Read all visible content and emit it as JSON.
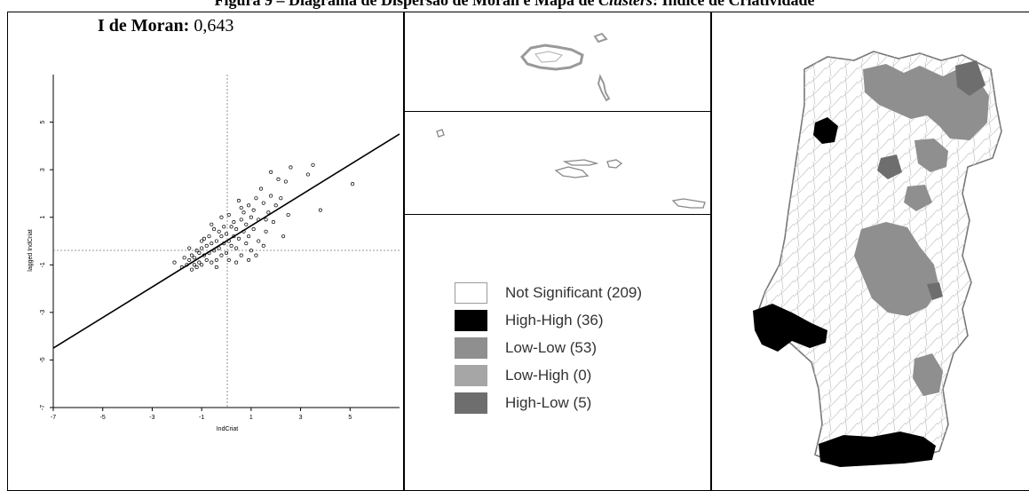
{
  "figure_title_prefix": "Figura 9 – Diagrama de Dispersão de Moran e Mapa de ",
  "figure_title_italic": "Clusters",
  "figure_title_suffix": ": Índice de Criatividade",
  "moran_label": "I de Moran:",
  "moran_value": "0,643",
  "legend": [
    {
      "label": "Not Significant (209)",
      "color": "#ffffff"
    },
    {
      "label": "High-High (36)",
      "color": "#000000"
    },
    {
      "label": "Low-Low (53)",
      "color": "#8f8f8f"
    },
    {
      "label": "Low-High (0)",
      "color": "#a6a6a6"
    },
    {
      "label": "High-Low (5)",
      "color": "#6e6e6e"
    }
  ],
  "chart_data": {
    "type": "scatter",
    "xlabel": "IndCriat",
    "ylabel": "lagged IndCriat",
    "xlim": [
      -7,
      7
    ],
    "ylim": [
      -7,
      7
    ],
    "xticks": [
      -7,
      -5,
      -3,
      -1,
      1,
      3,
      5
    ],
    "yticks": [
      -7,
      -5,
      -3,
      -1,
      1,
      3,
      5
    ],
    "regression": {
      "slope": 0.643,
      "intercept": 0
    },
    "points": [
      [
        5.1,
        2.4
      ],
      [
        3.8,
        1.3
      ],
      [
        3.5,
        3.2
      ],
      [
        3.3,
        2.8
      ],
      [
        2.6,
        3.1
      ],
      [
        2.4,
        2.5
      ],
      [
        2.5,
        1.1
      ],
      [
        2.3,
        0.2
      ],
      [
        2.1,
        2.6
      ],
      [
        2.0,
        1.5
      ],
      [
        1.9,
        0.8
      ],
      [
        1.8,
        2.9
      ],
      [
        1.8,
        1.9
      ],
      [
        1.7,
        1.2
      ],
      [
        1.6,
        0.4
      ],
      [
        1.5,
        -0.2
      ],
      [
        1.5,
        1.6
      ],
      [
        1.4,
        2.2
      ],
      [
        1.3,
        0.9
      ],
      [
        1.3,
        0.0
      ],
      [
        1.2,
        1.8
      ],
      [
        1.1,
        1.3
      ],
      [
        1.1,
        0.5
      ],
      [
        1.0,
        -0.4
      ],
      [
        1.0,
        1.0
      ],
      [
        0.9,
        0.2
      ],
      [
        0.9,
        1.5
      ],
      [
        0.8,
        0.7
      ],
      [
        0.8,
        -0.1
      ],
      [
        0.7,
        1.2
      ],
      [
        0.7,
        0.4
      ],
      [
        0.6,
        -0.6
      ],
      [
        0.6,
        0.9
      ],
      [
        0.5,
        0.1
      ],
      [
        0.5,
        1.7
      ],
      [
        0.4,
        0.5
      ],
      [
        0.4,
        -0.3
      ],
      [
        0.3,
        0.8
      ],
      [
        0.3,
        0.2
      ],
      [
        0.2,
        -0.2
      ],
      [
        0.2,
        0.6
      ],
      [
        0.1,
        0.0
      ],
      [
        0.1,
        1.1
      ],
      [
        0.0,
        0.3
      ],
      [
        0.0,
        -0.5
      ],
      [
        -0.1,
        0.6
      ],
      [
        -0.1,
        -0.1
      ],
      [
        -0.2,
        0.2
      ],
      [
        -0.2,
        -0.6
      ],
      [
        -0.3,
        0.4
      ],
      [
        -0.3,
        -0.3
      ],
      [
        -0.4,
        0.0
      ],
      [
        -0.4,
        -0.8
      ],
      [
        -0.5,
        0.5
      ],
      [
        -0.5,
        -0.4
      ],
      [
        -0.6,
        -0.1
      ],
      [
        -0.6,
        -0.9
      ],
      [
        -0.7,
        0.2
      ],
      [
        -0.7,
        -0.5
      ],
      [
        -0.8,
        -0.2
      ],
      [
        -0.8,
        -0.8
      ],
      [
        -0.9,
        0.1
      ],
      [
        -0.9,
        -0.6
      ],
      [
        -1.0,
        -0.3
      ],
      [
        -1.0,
        -1.0
      ],
      [
        -1.1,
        -0.5
      ],
      [
        -1.1,
        -0.9
      ],
      [
        -1.2,
        -0.4
      ],
      [
        -1.2,
        -1.1
      ],
      [
        -1.3,
        -0.7
      ],
      [
        -1.3,
        -1.0
      ],
      [
        -1.4,
        -0.6
      ],
      [
        -1.4,
        -1.2
      ],
      [
        -1.5,
        -0.8
      ],
      [
        -1.6,
        -1.0
      ],
      [
        -1.7,
        -0.7
      ],
      [
        -1.8,
        -1.1
      ],
      [
        -0.2,
        1.0
      ],
      [
        0.4,
        -0.9
      ],
      [
        1.2,
        -0.6
      ],
      [
        -0.6,
        0.7
      ],
      [
        0.6,
        1.4
      ],
      [
        -1.0,
        0.0
      ],
      [
        -2.1,
        -0.9
      ],
      [
        0.9,
        -0.8
      ],
      [
        1.6,
        0.9
      ],
      [
        2.2,
        1.8
      ],
      [
        -0.4,
        -1.1
      ],
      [
        0.1,
        -0.8
      ],
      [
        -1.5,
        -0.3
      ]
    ]
  }
}
